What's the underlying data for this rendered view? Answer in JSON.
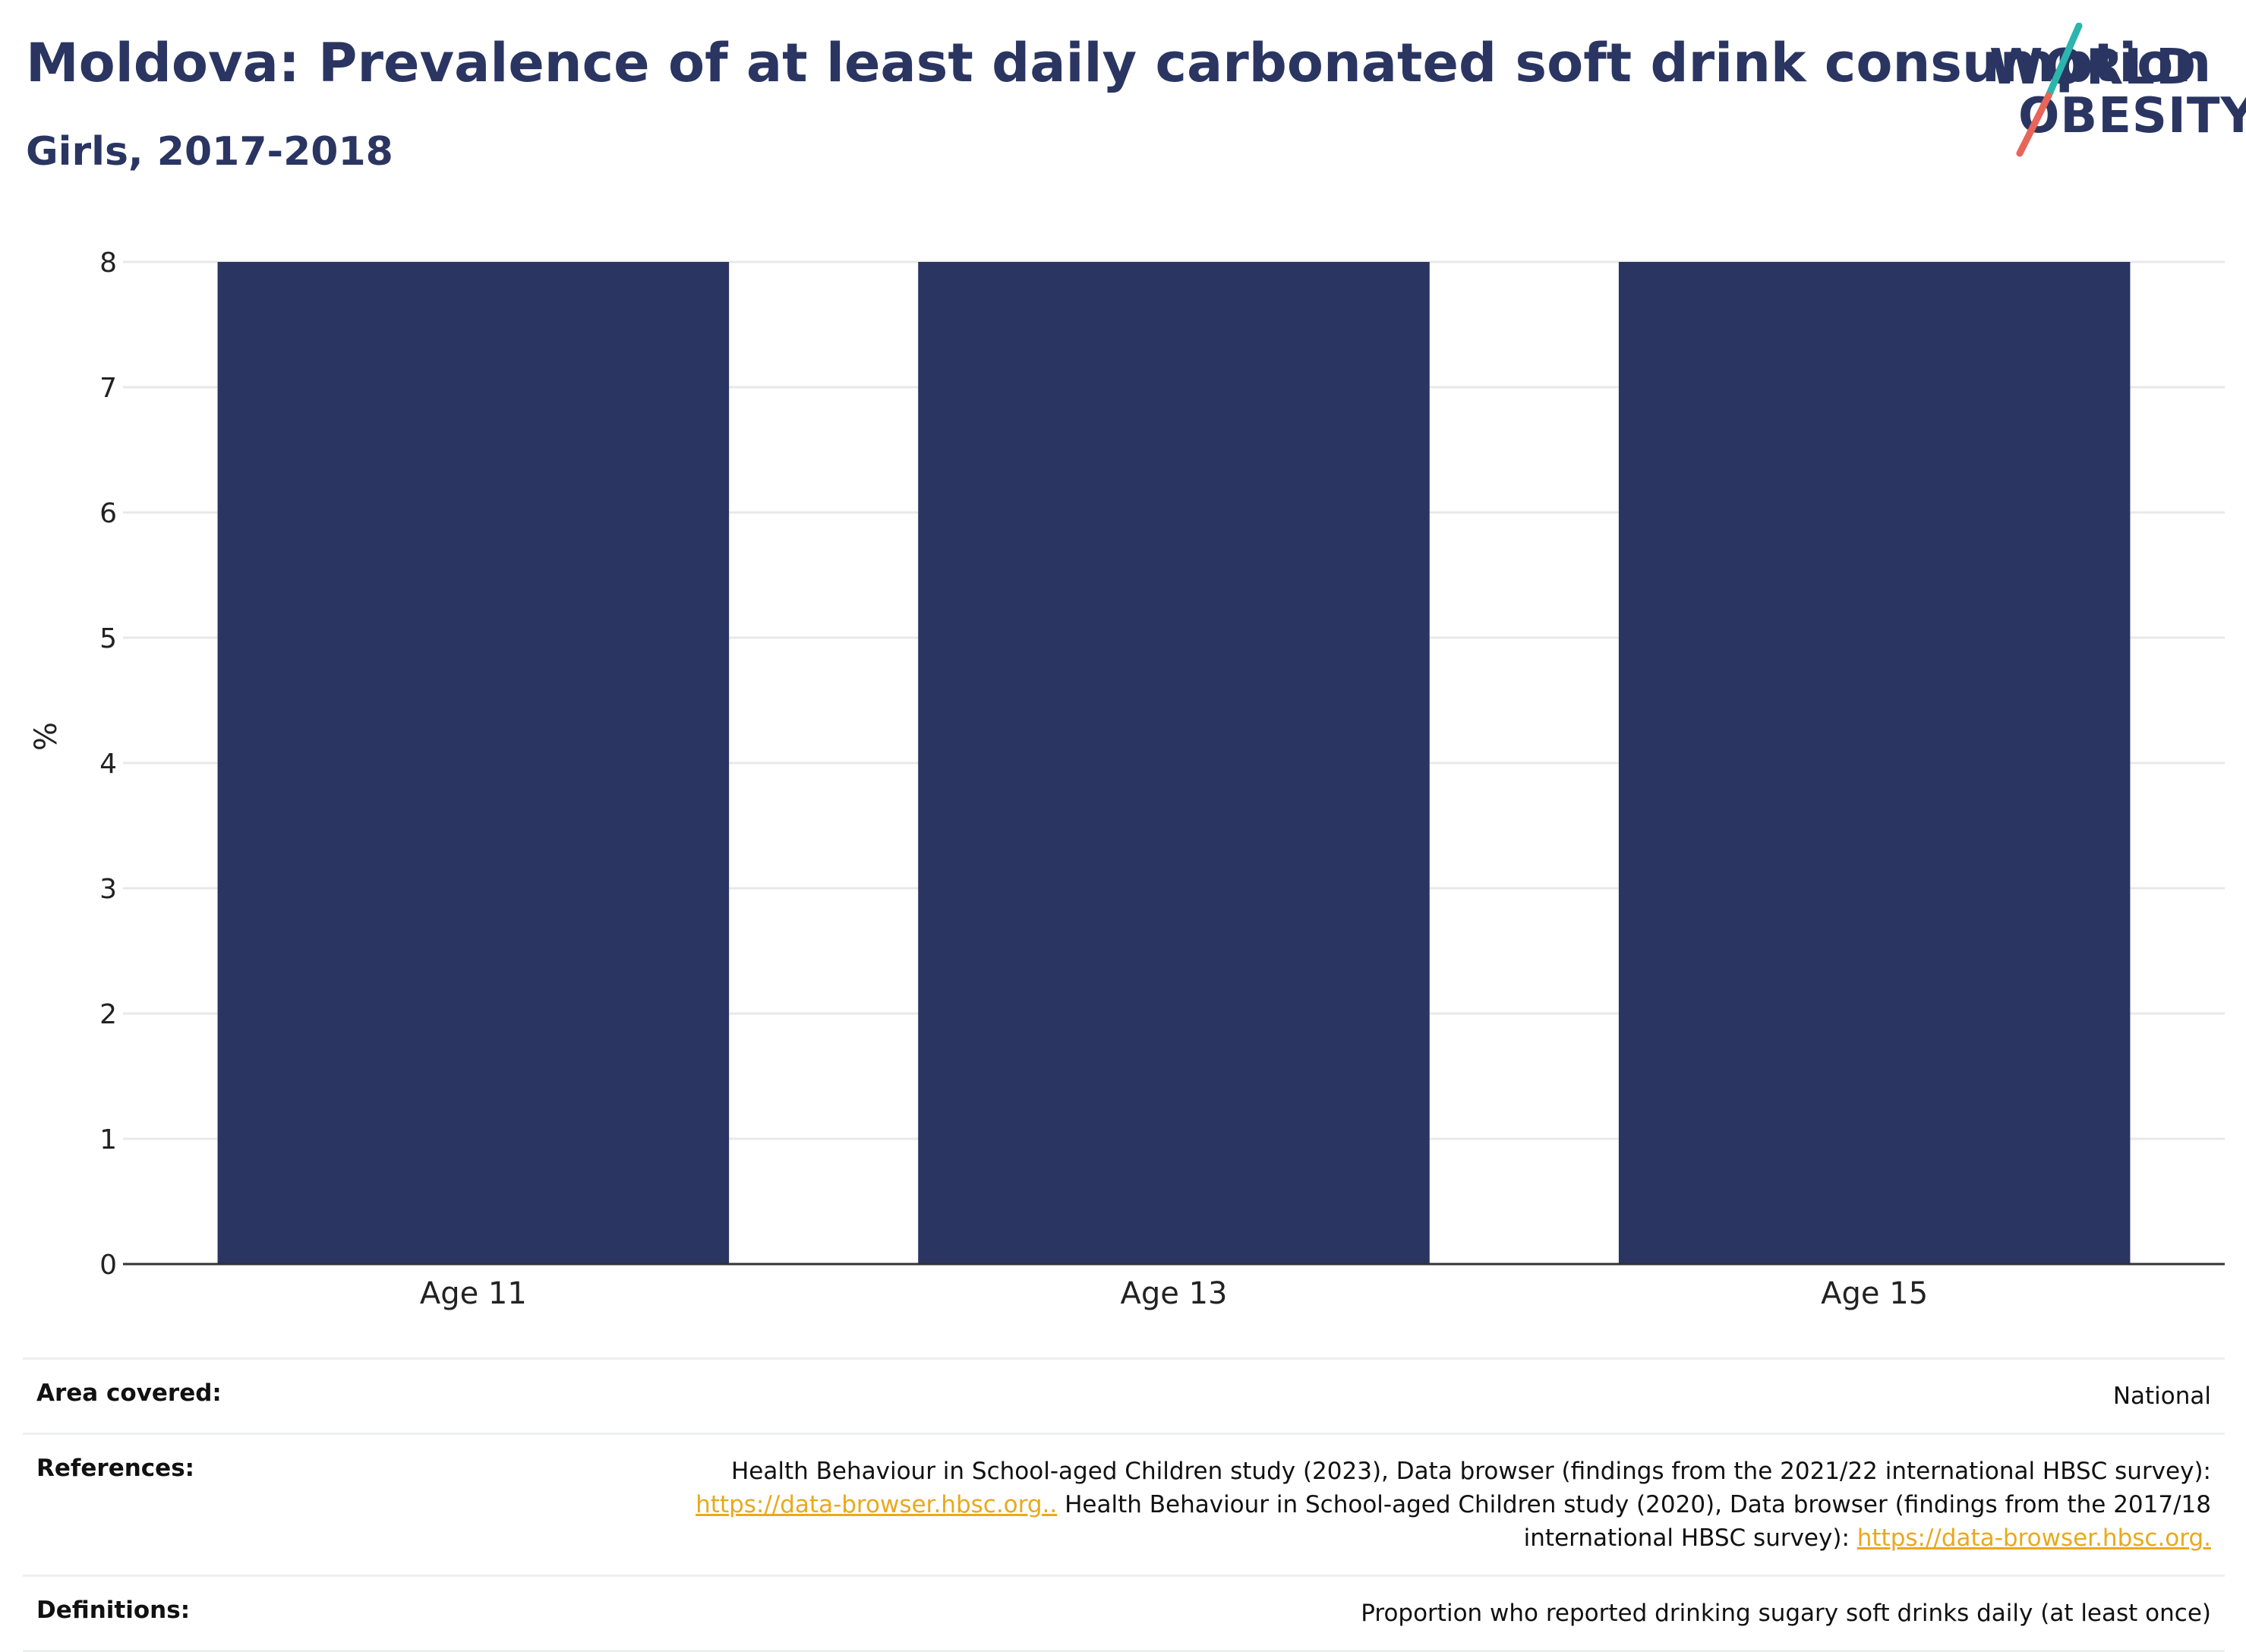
{
  "header": {
    "title": "Moldova: Prevalence of at least daily carbonated soft drink consumption",
    "subtitle": "Girls, 2017-2018"
  },
  "logo": {
    "line1": "WORLD",
    "line2": "OBESITY",
    "colors": {
      "text": "#2a3561",
      "slash_top": "#2bb5ad",
      "slash_bottom": "#e8655a"
    }
  },
  "chart_data": {
    "type": "bar",
    "categories": [
      "Age 11",
      "Age 13",
      "Age 15"
    ],
    "values": [
      8,
      8,
      8
    ],
    "xlabel": "",
    "ylabel": "%",
    "ylim": [
      0,
      8
    ],
    "yticks": [
      0,
      1,
      2,
      3,
      4,
      5,
      6,
      7,
      8
    ],
    "grid": true,
    "bar_color": "#2a3561"
  },
  "info": {
    "area_label": "Area covered:",
    "area_value": "National",
    "references_label": "References:",
    "references_text_1": "Health Behaviour in School-aged Children study (2023), Data browser (findings from the 2021/22 international HBSC survey):",
    "references_link_1": "https://data-browser.hbsc.org..",
    "references_text_2": " Health Behaviour in School-aged Children study (2020), Data browser (findings from the 2017/18 international HBSC survey): ",
    "references_link_2": "https://data-browser.hbsc.org.",
    "definitions_label": "Definitions:",
    "definitions_value": "Proportion who reported drinking sugary soft drinks daily (at least once)"
  }
}
